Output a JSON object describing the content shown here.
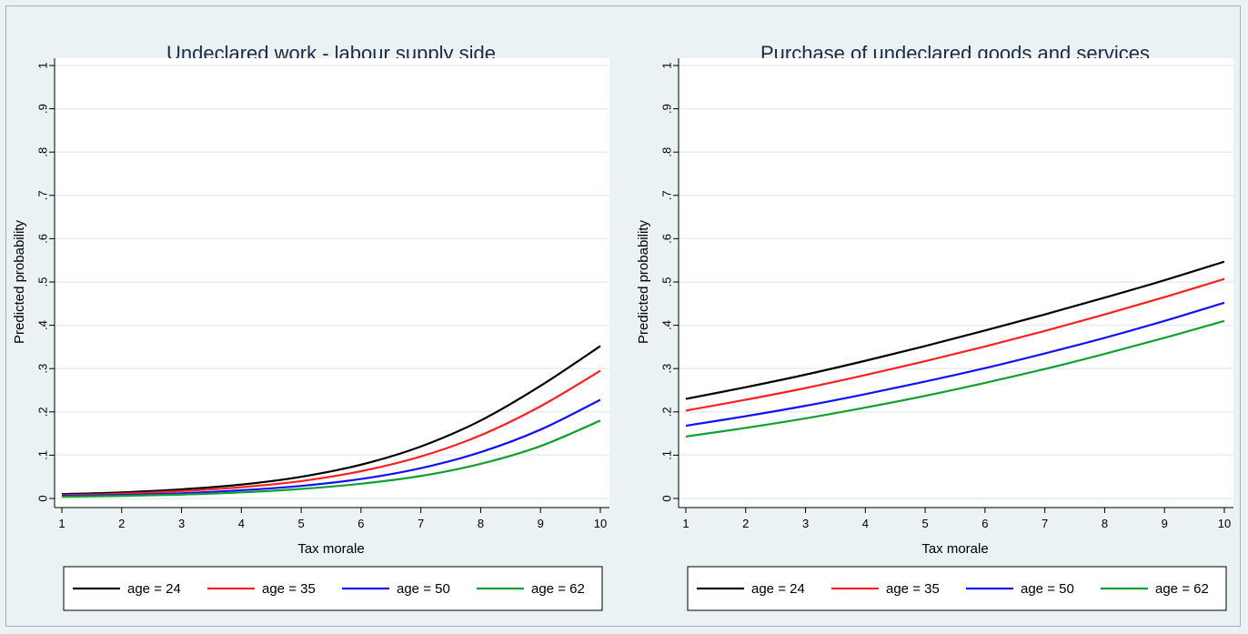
{
  "chart_data": [
    {
      "type": "line",
      "title": "Undeclared work - labour supply side",
      "xlabel": "Tax morale",
      "ylabel": "Predicted probability",
      "x": [
        1,
        2,
        3,
        4,
        5,
        6,
        7,
        8,
        9,
        10
      ],
      "xlim": [
        1,
        10
      ],
      "ylim": [
        0,
        1
      ],
      "xticks": [
        "1",
        "2",
        "3",
        "4",
        "5",
        "6",
        "7",
        "8",
        "9",
        "10"
      ],
      "yticks": [
        "0",
        ".1",
        ".2",
        ".3",
        ".4",
        ".5",
        ".6",
        ".7",
        ".8",
        ".9",
        "1"
      ],
      "grid": true,
      "legend_position": "bottom",
      "series": [
        {
          "name": "age = 24",
          "color": "#000000",
          "values": [
            0.01,
            0.014,
            0.021,
            0.032,
            0.05,
            0.078,
            0.12,
            0.18,
            0.26,
            0.352
          ]
        },
        {
          "name": "age = 35",
          "color": "#ff2020",
          "values": [
            0.008,
            0.011,
            0.017,
            0.026,
            0.04,
            0.063,
            0.097,
            0.146,
            0.213,
            0.295
          ]
        },
        {
          "name": "age = 50",
          "color": "#1010ff",
          "values": [
            0.006,
            0.008,
            0.012,
            0.019,
            0.029,
            0.045,
            0.07,
            0.107,
            0.159,
            0.228
          ]
        },
        {
          "name": "age = 62",
          "color": "#10a030",
          "values": [
            0.004,
            0.006,
            0.009,
            0.014,
            0.022,
            0.034,
            0.052,
            0.08,
            0.121,
            0.18
          ]
        }
      ]
    },
    {
      "type": "line",
      "title": "Purchase of undeclared goods and services",
      "xlabel": "Tax morale",
      "ylabel": "Predicted probability",
      "x": [
        1,
        2,
        3,
        4,
        5,
        6,
        7,
        8,
        9,
        10
      ],
      "xlim": [
        1,
        10
      ],
      "ylim": [
        0,
        1
      ],
      "xticks": [
        "1",
        "2",
        "3",
        "4",
        "5",
        "6",
        "7",
        "8",
        "9",
        "10"
      ],
      "yticks": [
        "0",
        ".1",
        ".2",
        ".3",
        ".4",
        ".5",
        ".6",
        ".7",
        ".8",
        ".9",
        "1"
      ],
      "grid": true,
      "legend_position": "bottom",
      "series": [
        {
          "name": "age = 24",
          "color": "#000000",
          "values": [
            0.23,
            0.257,
            0.286,
            0.318,
            0.352,
            0.388,
            0.425,
            0.464,
            0.504,
            0.547
          ]
        },
        {
          "name": "age = 35",
          "color": "#ff2020",
          "values": [
            0.203,
            0.228,
            0.255,
            0.285,
            0.317,
            0.351,
            0.387,
            0.425,
            0.465,
            0.507
          ]
        },
        {
          "name": "age = 50",
          "color": "#1010ff",
          "values": [
            0.168,
            0.19,
            0.214,
            0.241,
            0.27,
            0.301,
            0.335,
            0.371,
            0.41,
            0.452
          ]
        },
        {
          "name": "age = 62",
          "color": "#10a030",
          "values": [
            0.143,
            0.163,
            0.185,
            0.21,
            0.237,
            0.267,
            0.299,
            0.334,
            0.371,
            0.41
          ]
        }
      ]
    }
  ]
}
